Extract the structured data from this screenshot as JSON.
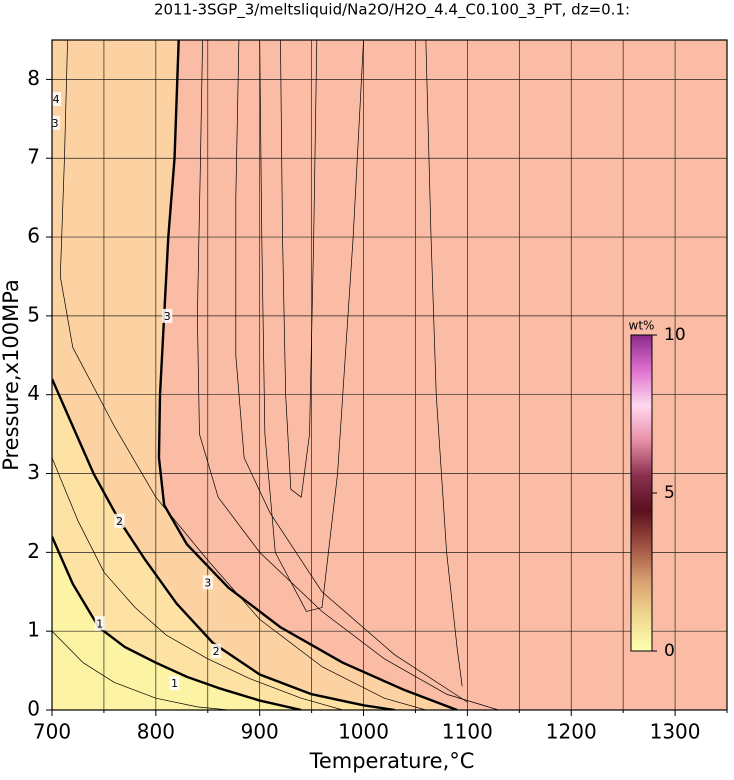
{
  "chart_data": {
    "type": "contour",
    "title": "2011-3SGP_3/meltsliquid/Na2O/H2O_4.4_C0.100_3_PT, dz=0.1:",
    "x_label": "Temperature,°C",
    "y_label": "Pressure,x100MPa",
    "xlim": [
      700,
      1350
    ],
    "ylim": [
      0,
      8.5
    ],
    "xticks": [
      700,
      800,
      900,
      1000,
      1100,
      1200,
      1300
    ],
    "xminor": [
      750,
      850,
      950,
      1050,
      1150,
      1250,
      1350
    ],
    "yticks": [
      0,
      1,
      2,
      3,
      4,
      5,
      6,
      7,
      8
    ],
    "grid": true,
    "band_colors": [
      "#fdf3a4",
      "#fde2a3",
      "#fcd2a2",
      "#fbbca5"
    ],
    "contours": [
      {
        "level": 1,
        "x": [
          700,
          720,
          745,
          770,
          800,
          830,
          860,
          900,
          940
        ],
        "y": [
          2.2,
          1.6,
          1.05,
          0.8,
          0.6,
          0.42,
          0.28,
          0.12,
          0
        ]
      },
      {
        "level": 2,
        "x": [
          700,
          720,
          740,
          765,
          790,
          820,
          855,
          900,
          950,
          1000,
          1030
        ],
        "y": [
          4.2,
          3.6,
          3.0,
          2.4,
          1.9,
          1.35,
          0.85,
          0.45,
          0.2,
          0.06,
          0
        ]
      },
      {
        "level": 3,
        "x": [
          822,
          818,
          812,
          808,
          804,
          803,
          808,
          830,
          870,
          920,
          980,
          1040,
          1090
        ],
        "y": [
          8.5,
          7,
          6,
          5,
          4,
          3.2,
          2.6,
          2.1,
          1.55,
          1.05,
          0.6,
          0.25,
          0
        ]
      },
      {
        "level": 0.5,
        "x": [
          700,
          730,
          760,
          800,
          840,
          870
        ],
        "y": [
          1.0,
          0.6,
          0.35,
          0.15,
          0.04,
          0
        ]
      },
      {
        "level": 1.5,
        "x": [
          700,
          725,
          750,
          780,
          810,
          850,
          890,
          940,
          980
        ],
        "y": [
          3.2,
          2.4,
          1.75,
          1.3,
          0.95,
          0.65,
          0.4,
          0.15,
          0
        ]
      },
      {
        "level": 2.5,
        "x": [
          715,
          712,
          708,
          720,
          760,
          800,
          850,
          900,
          960,
          1020,
          1060
        ],
        "y": [
          8.5,
          7,
          5.5,
          4.6,
          3.6,
          2.7,
          1.9,
          1.15,
          0.55,
          0.15,
          0
        ]
      },
      {
        "level": 3.2,
        "x": [
          845,
          843,
          840,
          842,
          860,
          900,
          960,
          1020,
          1080,
          1130
        ],
        "y": [
          8.5,
          7,
          5,
          3.5,
          2.7,
          2.0,
          1.25,
          0.65,
          0.2,
          0
        ]
      },
      {
        "level": 3.4,
        "x": [
          880,
          877,
          877,
          885,
          910,
          960,
          1030,
          1100
        ],
        "y": [
          8.5,
          6.5,
          4.5,
          3.2,
          2.5,
          1.5,
          0.7,
          0.1
        ]
      },
      {
        "level": 3.5,
        "x": [
          900,
          902,
          905,
          915,
          945,
          960,
          975,
          990,
          1000
        ],
        "y": [
          8.5,
          6,
          3.5,
          2,
          1.25,
          1.3,
          3,
          6,
          8.5
        ]
      },
      {
        "level": 3.6,
        "x": [
          920,
          922,
          925,
          930,
          940,
          948,
          952,
          955
        ],
        "y": [
          8.5,
          6,
          4,
          2.8,
          2.7,
          3.5,
          6,
          8.5
        ]
      },
      {
        "level": 3.7,
        "x": [
          1060,
          1065,
          1070,
          1080,
          1090,
          1095
        ],
        "y": [
          8.5,
          6,
          4,
          2,
          0.8,
          0.3
        ]
      }
    ],
    "contour_labels": [
      {
        "value": 3,
        "x": 811,
        "y": 5.0
      },
      {
        "value": 2,
        "x": 765,
        "y": 2.4
      },
      {
        "value": 1,
        "x": 746,
        "y": 1.1
      },
      {
        "value": 3,
        "x": 850,
        "y": 1.62
      },
      {
        "value": 2,
        "x": 858,
        "y": 0.75
      },
      {
        "value": 1,
        "x": 818,
        "y": 0.34
      },
      {
        "value": 3,
        "x": 703,
        "y": 7.45
      },
      {
        "value": 4,
        "x": 704,
        "y": 7.75
      }
    ],
    "colorbar": {
      "label": "wt%",
      "lim": [
        0,
        10
      ],
      "ticks": [
        0,
        5,
        10
      ],
      "colors": [
        "#ffffb0",
        "#f0d890",
        "#d8a070",
        "#a05040",
        "#5a1020",
        "#8a3050",
        "#e890a8",
        "#ffd8f0",
        "#e070d0",
        "#8a2a8a"
      ]
    }
  }
}
